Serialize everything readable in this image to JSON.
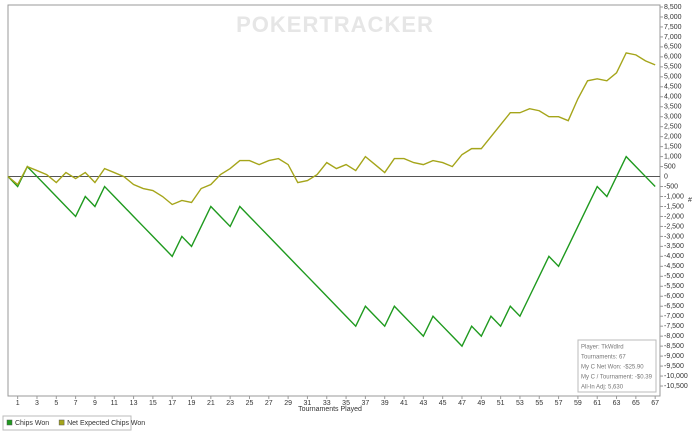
{
  "chart_data": {
    "type": "line",
    "logo": "POKERTRACKER",
    "xlabel": "Tournaments Played",
    "ylabel": "#",
    "x": [
      0,
      1,
      2,
      3,
      4,
      5,
      6,
      7,
      8,
      9,
      10,
      11,
      12,
      13,
      14,
      15,
      16,
      17,
      18,
      19,
      20,
      21,
      22,
      23,
      24,
      25,
      26,
      27,
      28,
      29,
      30,
      31,
      32,
      33,
      34,
      35,
      36,
      37,
      38,
      39,
      40,
      41,
      42,
      43,
      44,
      45,
      46,
      47,
      48,
      49,
      50,
      51,
      52,
      53,
      54,
      55,
      56,
      57,
      58,
      59,
      60,
      61,
      62,
      63,
      64,
      65,
      66,
      67
    ],
    "series": [
      {
        "name": "Chips Won",
        "color": "#1f9a1f",
        "values": [
          0,
          -500,
          500,
          0,
          -500,
          -1000,
          -1500,
          -2000,
          -1000,
          -1500,
          -500,
          -1000,
          -1500,
          -2000,
          -2500,
          -3000,
          -3500,
          -4000,
          -3000,
          -3500,
          -2500,
          -1500,
          -2000,
          -2500,
          -1500,
          -2000,
          -2500,
          -3000,
          -3500,
          -4000,
          -4500,
          -5000,
          -5500,
          -6000,
          -6500,
          -7000,
          -7500,
          -6500,
          -7000,
          -7500,
          -6500,
          -7000,
          -7500,
          -8000,
          -7000,
          -7500,
          -8000,
          -8500,
          -7500,
          -8000,
          -7000,
          -7500,
          -6500,
          -7000,
          -6000,
          -5000,
          -4000,
          -4500,
          -3500,
          -2500,
          -1500,
          -500,
          -1000,
          0,
          1000,
          500,
          0,
          -500
        ]
      },
      {
        "name": "Net Expected Chips Won",
        "color": "#a5a51a",
        "values": [
          0,
          -400,
          500,
          300,
          100,
          -300,
          200,
          -100,
          200,
          -300,
          400,
          200,
          0,
          -400,
          -600,
          -700,
          -1000,
          -1400,
          -1200,
          -1300,
          -600,
          -400,
          100,
          400,
          800,
          800,
          600,
          800,
          900,
          600,
          -300,
          -200,
          100,
          700,
          400,
          600,
          300,
          1000,
          600,
          200,
          900,
          900,
          700,
          600,
          800,
          700,
          500,
          1100,
          1400,
          1400,
          2000,
          2600,
          3200,
          3200,
          3400,
          3300,
          3000,
          3000,
          2800,
          3900,
          4800,
          4900,
          4800,
          5200,
          6200,
          6100,
          5800,
          5600
        ]
      }
    ],
    "xlim": [
      0,
      67.5
    ],
    "xticks": [
      1,
      3,
      5,
      7,
      9,
      11,
      13,
      15,
      17,
      19,
      21,
      23,
      25,
      27,
      29,
      31,
      33,
      35,
      37,
      39,
      41,
      43,
      45,
      47,
      49,
      51,
      53,
      55,
      57,
      59,
      61,
      63,
      65,
      67
    ],
    "ylim": [
      -11000,
      8600
    ],
    "yticks": [
      {
        "value": 8500,
        "label": "8,500"
      },
      {
        "value": 8000,
        "label": "8,000"
      },
      {
        "value": 7500,
        "label": "7,500"
      },
      {
        "value": 7000,
        "label": "7,000"
      },
      {
        "value": 6500,
        "label": "6,500"
      },
      {
        "value": 6000,
        "label": "6,000"
      },
      {
        "value": 5500,
        "label": "5,500"
      },
      {
        "value": 5000,
        "label": "5,000"
      },
      {
        "value": 4500,
        "label": "4,500"
      },
      {
        "value": 4000,
        "label": "4,000"
      },
      {
        "value": 3500,
        "label": "3,500"
      },
      {
        "value": 3000,
        "label": "3,000"
      },
      {
        "value": 2500,
        "label": "2,500"
      },
      {
        "value": 2000,
        "label": "2,000"
      },
      {
        "value": 1500,
        "label": "1,500"
      },
      {
        "value": 1000,
        "label": "1,000"
      },
      500,
      0,
      -500,
      {
        "value": -1000,
        "label": "-1,000"
      },
      {
        "value": -1500,
        "label": "-1,500"
      },
      {
        "value": -2000,
        "label": "-2,000"
      },
      {
        "value": -2500,
        "label": "-2,500"
      },
      {
        "value": -3000,
        "label": "-3,000"
      },
      {
        "value": -3500,
        "label": "-3,500"
      },
      {
        "value": -4000,
        "label": "-4,000"
      },
      {
        "value": -4500,
        "label": "-4,500"
      },
      {
        "value": -5000,
        "label": "-5,000"
      },
      {
        "value": -5500,
        "label": "-5,500"
      },
      {
        "value": -6000,
        "label": "-6,000"
      },
      {
        "value": -6500,
        "label": "-6,500"
      },
      {
        "value": -7000,
        "label": "-7,000"
      },
      {
        "value": -7500,
        "label": "-7,500"
      },
      {
        "value": -8000,
        "label": "-8,000"
      },
      {
        "value": -8500,
        "label": "-8,500"
      },
      {
        "value": -9000,
        "label": "-9,000"
      },
      {
        "value": -9500,
        "label": "-9,500"
      },
      {
        "value": {
          "value": -10000,
          "label": "-10,000"
        },
        "label": "-10,000"
      },
      {
        "value": -10500,
        "label": "-10,500"
      }
    ],
    "info_box": [
      "Player: TkWdlrd",
      "Tournaments: 67",
      "My C Net Won: -$25.90",
      "My C / Tournament: -$0.39",
      "All-In Adj: 5,630"
    ]
  }
}
